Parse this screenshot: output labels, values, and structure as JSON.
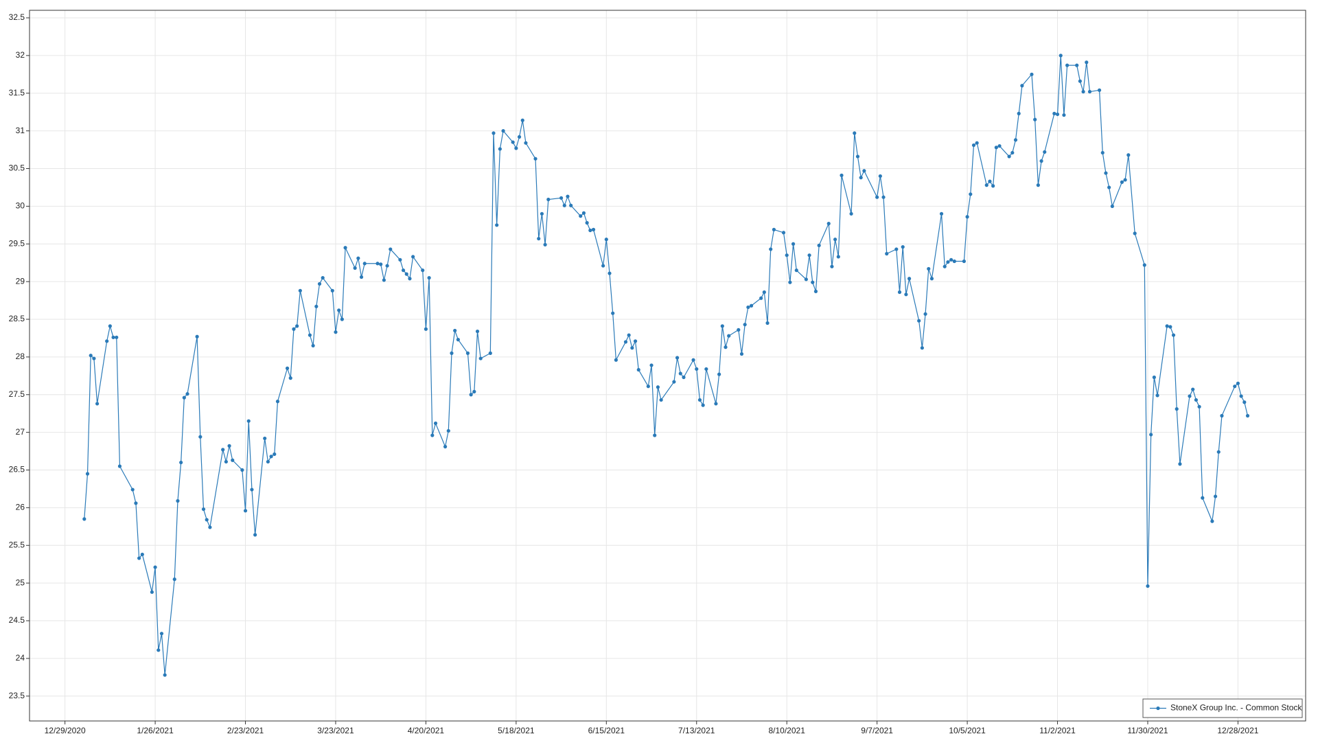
{
  "chart_data": {
    "type": "line",
    "x": [
      "2021-01-04",
      "2021-01-05",
      "2021-01-06",
      "2021-01-07",
      "2021-01-08",
      "2021-01-11",
      "2021-01-12",
      "2021-01-13",
      "2021-01-14",
      "2021-01-15",
      "2021-01-19",
      "2021-01-20",
      "2021-01-21",
      "2021-01-22",
      "2021-01-25",
      "2021-01-26",
      "2021-01-27",
      "2021-01-28",
      "2021-01-29",
      "2021-02-01",
      "2021-02-02",
      "2021-02-03",
      "2021-02-04",
      "2021-02-05",
      "2021-02-08",
      "2021-02-09",
      "2021-02-10",
      "2021-02-11",
      "2021-02-12",
      "2021-02-16",
      "2021-02-17",
      "2021-02-18",
      "2021-02-19",
      "2021-02-22",
      "2021-02-23",
      "2021-02-24",
      "2021-02-25",
      "2021-02-26",
      "2021-03-01",
      "2021-03-02",
      "2021-03-03",
      "2021-03-04",
      "2021-03-05",
      "2021-03-08",
      "2021-03-09",
      "2021-03-10",
      "2021-03-11",
      "2021-03-12",
      "2021-03-15",
      "2021-03-16",
      "2021-03-17",
      "2021-03-18",
      "2021-03-19",
      "2021-03-22",
      "2021-03-23",
      "2021-03-24",
      "2021-03-25",
      "2021-03-26",
      "2021-03-29",
      "2021-03-30",
      "2021-03-31",
      "2021-04-01",
      "2021-04-05",
      "2021-04-06",
      "2021-04-07",
      "2021-04-08",
      "2021-04-09",
      "2021-04-12",
      "2021-04-13",
      "2021-04-14",
      "2021-04-15",
      "2021-04-16",
      "2021-04-19",
      "2021-04-20",
      "2021-04-21",
      "2021-04-22",
      "2021-04-23",
      "2021-04-26",
      "2021-04-27",
      "2021-04-28",
      "2021-04-29",
      "2021-04-30",
      "2021-05-03",
      "2021-05-04",
      "2021-05-05",
      "2021-05-06",
      "2021-05-07",
      "2021-05-10",
      "2021-05-11",
      "2021-05-12",
      "2021-05-13",
      "2021-05-14",
      "2021-05-17",
      "2021-05-18",
      "2021-05-19",
      "2021-05-20",
      "2021-05-21",
      "2021-05-24",
      "2021-05-25",
      "2021-05-26",
      "2021-05-27",
      "2021-05-28",
      "2021-06-01",
      "2021-06-02",
      "2021-06-03",
      "2021-06-04",
      "2021-06-07",
      "2021-06-08",
      "2021-06-09",
      "2021-06-10",
      "2021-06-11",
      "2021-06-14",
      "2021-06-15",
      "2021-06-16",
      "2021-06-17",
      "2021-06-18",
      "2021-06-21",
      "2021-06-22",
      "2021-06-23",
      "2021-06-24",
      "2021-06-25",
      "2021-06-28",
      "2021-06-29",
      "2021-06-30",
      "2021-07-01",
      "2021-07-02",
      "2021-07-06",
      "2021-07-07",
      "2021-07-08",
      "2021-07-09",
      "2021-07-12",
      "2021-07-13",
      "2021-07-14",
      "2021-07-15",
      "2021-07-16",
      "2021-07-19",
      "2021-07-20",
      "2021-07-21",
      "2021-07-22",
      "2021-07-23",
      "2021-07-26",
      "2021-07-27",
      "2021-07-28",
      "2021-07-29",
      "2021-07-30",
      "2021-08-02",
      "2021-08-03",
      "2021-08-04",
      "2021-08-05",
      "2021-08-06",
      "2021-08-09",
      "2021-08-10",
      "2021-08-11",
      "2021-08-12",
      "2021-08-13",
      "2021-08-16",
      "2021-08-17",
      "2021-08-18",
      "2021-08-19",
      "2021-08-20",
      "2021-08-23",
      "2021-08-24",
      "2021-08-25",
      "2021-08-26",
      "2021-08-27",
      "2021-08-30",
      "2021-08-31",
      "2021-09-01",
      "2021-09-02",
      "2021-09-03",
      "2021-09-07",
      "2021-09-08",
      "2021-09-09",
      "2021-09-10",
      "2021-09-13",
      "2021-09-14",
      "2021-09-15",
      "2021-09-16",
      "2021-09-17",
      "2021-09-20",
      "2021-09-21",
      "2021-09-22",
      "2021-09-23",
      "2021-09-24",
      "2021-09-27",
      "2021-09-28",
      "2021-09-29",
      "2021-09-30",
      "2021-10-01",
      "2021-10-04",
      "2021-10-05",
      "2021-10-06",
      "2021-10-07",
      "2021-10-08",
      "2021-10-11",
      "2021-10-12",
      "2021-10-13",
      "2021-10-14",
      "2021-10-15",
      "2021-10-18",
      "2021-10-19",
      "2021-10-20",
      "2021-10-21",
      "2021-10-22",
      "2021-10-25",
      "2021-10-26",
      "2021-10-27",
      "2021-10-28",
      "2021-10-29",
      "2021-11-01",
      "2021-11-02",
      "2021-11-03",
      "2021-11-04",
      "2021-11-05",
      "2021-11-08",
      "2021-11-09",
      "2021-11-10",
      "2021-11-11",
      "2021-11-12",
      "2021-11-15",
      "2021-11-16",
      "2021-11-17",
      "2021-11-18",
      "2021-11-19",
      "2021-11-22",
      "2021-11-23",
      "2021-11-24",
      "2021-11-26",
      "2021-11-29",
      "2021-11-30",
      "2021-12-01",
      "2021-12-02",
      "2021-12-03",
      "2021-12-06",
      "2021-12-07",
      "2021-12-08",
      "2021-12-09",
      "2021-12-10",
      "2021-12-13",
      "2021-12-14",
      "2021-12-15",
      "2021-12-16",
      "2021-12-17",
      "2021-12-20",
      "2021-12-21",
      "2021-12-22",
      "2021-12-23",
      "2021-12-27",
      "2021-12-28",
      "2021-12-29",
      "2021-12-30",
      "2021-12-31"
    ],
    "series": [
      {
        "name": "StoneX Group Inc. - Common Stock",
        "color": "#2a7ab8",
        "values": [
          25.85,
          26.45,
          28.02,
          27.98,
          27.38,
          28.21,
          28.41,
          28.26,
          28.26,
          26.55,
          26.24,
          26.06,
          25.33,
          25.38,
          24.88,
          25.21,
          24.11,
          24.33,
          23.78,
          25.05,
          26.09,
          26.6,
          27.46,
          27.51,
          28.27,
          26.94,
          25.98,
          25.84,
          25.74,
          26.77,
          26.61,
          26.82,
          26.63,
          26.5,
          25.96,
          27.15,
          26.24,
          25.64,
          26.92,
          26.61,
          26.68,
          26.71,
          27.41,
          27.85,
          27.72,
          28.37,
          28.41,
          28.88,
          28.29,
          28.15,
          28.67,
          28.97,
          29.05,
          28.88,
          28.33,
          28.62,
          28.5,
          29.45,
          29.18,
          29.31,
          29.06,
          29.24,
          29.24,
          29.23,
          29.02,
          29.21,
          29.43,
          29.29,
          29.15,
          29.1,
          29.04,
          29.33,
          29.15,
          28.37,
          29.05,
          26.96,
          27.12,
          26.81,
          27.02,
          28.05,
          28.35,
          28.23,
          28.05,
          27.5,
          27.54,
          28.34,
          27.98,
          28.05,
          30.97,
          29.75,
          30.76,
          31.0,
          30.85,
          30.77,
          30.92,
          31.14,
          30.84,
          30.63,
          29.57,
          29.9,
          29.49,
          30.09,
          30.11,
          30.01,
          30.13,
          30.01,
          29.87,
          29.91,
          29.78,
          29.68,
          29.69,
          29.21,
          29.56,
          29.11,
          28.58,
          27.96,
          28.2,
          28.29,
          28.12,
          28.21,
          27.83,
          27.61,
          27.89,
          26.96,
          27.6,
          27.43,
          27.67,
          27.99,
          27.78,
          27.73,
          27.96,
          27.84,
          27.43,
          27.36,
          27.84,
          27.38,
          27.77,
          28.41,
          28.13,
          28.28,
          28.36,
          28.04,
          28.43,
          28.66,
          28.68,
          28.78,
          28.86,
          28.45,
          29.43,
          29.69,
          29.65,
          29.35,
          28.99,
          29.5,
          29.15,
          29.03,
          29.35,
          28.99,
          28.87,
          29.48,
          29.77,
          29.2,
          29.56,
          29.33,
          30.41,
          29.9,
          30.97,
          30.66,
          30.38,
          30.47,
          30.12,
          30.4,
          30.12,
          29.37,
          29.43,
          28.86,
          29.46,
          28.83,
          29.04,
          28.48,
          28.12,
          28.57,
          29.17,
          29.04,
          29.9,
          29.2,
          29.26,
          29.29,
          29.27,
          29.27,
          29.86,
          30.16,
          30.81,
          30.84,
          30.28,
          30.33,
          30.27,
          30.78,
          30.8,
          30.66,
          30.71,
          30.88,
          31.23,
          31.6,
          31.75,
          31.15,
          30.28,
          30.6,
          30.72,
          31.23,
          31.22,
          32.0,
          31.21,
          31.87,
          31.87,
          31.66,
          31.52,
          31.91,
          31.52,
          31.54,
          30.71,
          30.44,
          30.25,
          30.0,
          30.32,
          30.35,
          30.68,
          29.64,
          29.22,
          24.96,
          26.97,
          27.73,
          27.49,
          28.41,
          28.4,
          28.29,
          27.31,
          26.58,
          27.48,
          27.57,
          27.43,
          27.34,
          26.13,
          25.82,
          26.15,
          26.74,
          27.22,
          27.61,
          27.65,
          27.48,
          27.4,
          27.22
        ]
      }
    ],
    "xlim": [
      "2020-12-18",
      "2022-01-18"
    ],
    "xticks": [
      {
        "value": "2020-12-29",
        "label": "12/29/2020"
      },
      {
        "value": "2021-01-26",
        "label": "1/26/2021"
      },
      {
        "value": "2021-02-23",
        "label": "2/23/2021"
      },
      {
        "value": "2021-03-23",
        "label": "3/23/2021"
      },
      {
        "value": "2021-04-20",
        "label": "4/20/2021"
      },
      {
        "value": "2021-05-18",
        "label": "5/18/2021"
      },
      {
        "value": "2021-06-15",
        "label": "6/15/2021"
      },
      {
        "value": "2021-07-13",
        "label": "7/13/2021"
      },
      {
        "value": "2021-08-10",
        "label": "8/10/2021"
      },
      {
        "value": "2021-09-07",
        "label": "9/7/2021"
      },
      {
        "value": "2021-10-05",
        "label": "10/5/2021"
      },
      {
        "value": "2021-11-02",
        "label": "11/2/2021"
      },
      {
        "value": "2021-11-30",
        "label": "11/30/2021"
      },
      {
        "value": "2021-12-28",
        "label": "12/28/2021"
      }
    ],
    "ylim": [
      23.17,
      32.6
    ],
    "yticks": [
      23.5,
      24,
      24.5,
      25,
      25.5,
      26,
      26.5,
      27,
      27.5,
      28,
      28.5,
      29,
      29.5,
      30,
      30.5,
      31,
      31.5,
      32,
      32.5
    ],
    "grid": true,
    "legend": "lower right"
  }
}
